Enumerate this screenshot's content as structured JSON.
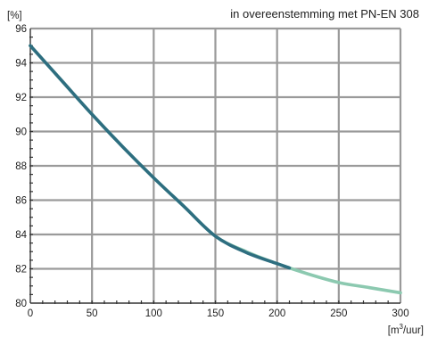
{
  "chart_data": {
    "type": "line",
    "title": "in overeenstemming met PN-EN 308",
    "ylabel": "[%]",
    "xlabel_base": "[m",
    "xlabel_sup": "3",
    "xlabel_tail": "/uur]",
    "xlim": [
      0,
      300
    ],
    "ylim": [
      80,
      96
    ],
    "xticks": [
      0,
      50,
      100,
      150,
      200,
      250,
      300
    ],
    "yticks": [
      80,
      82,
      84,
      86,
      88,
      90,
      92,
      94,
      96
    ],
    "grid": true,
    "series": [
      {
        "color": "#8cc9b0",
        "x": [
          0,
          25,
          50,
          75,
          100,
          125,
          150,
          175,
          200,
          225,
          250,
          275,
          300
        ],
        "y": [
          95.0,
          93.0,
          91.0,
          89.1,
          87.3,
          85.6,
          83.9,
          83.0,
          82.3,
          81.7,
          81.2,
          80.9,
          80.6
        ]
      },
      {
        "color": "#2e6e80",
        "x": [
          0,
          25,
          50,
          75,
          100,
          125,
          150,
          175,
          200,
          210
        ],
        "y": [
          95.0,
          93.0,
          91.0,
          89.1,
          87.3,
          85.6,
          83.9,
          82.95,
          82.3,
          82.05
        ]
      }
    ]
  }
}
